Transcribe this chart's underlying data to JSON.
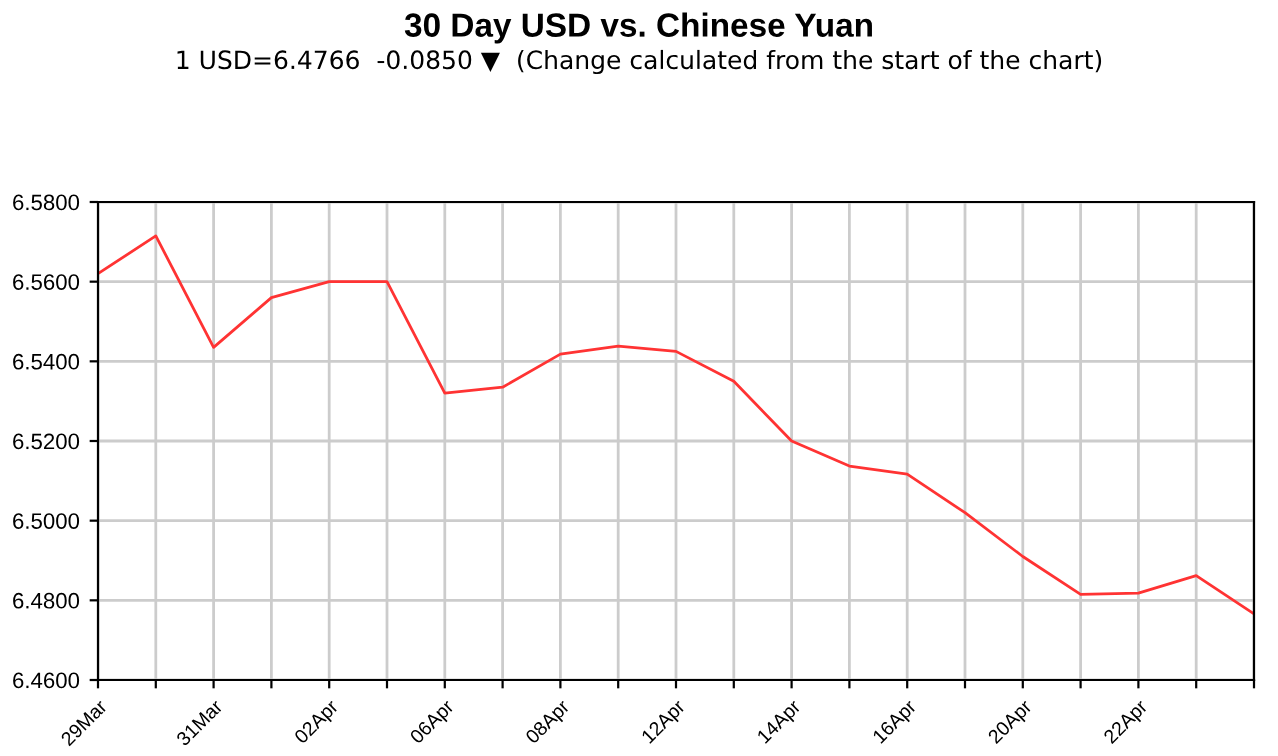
{
  "chart_data": {
    "type": "line",
    "title": "30 Day USD vs. Chinese Yuan",
    "subtitle": "1 USD=6.4766  -0.0850 ▼  (Change calculated from the start of the chart)",
    "categories": [
      "29Mar",
      null,
      "31Mar",
      null,
      "02Apr",
      null,
      "06Apr",
      null,
      "08Apr",
      null,
      "12Apr",
      null,
      "14Apr",
      null,
      "16Apr",
      null,
      "20Apr",
      null,
      "22Apr",
      null,
      null
    ],
    "series": [
      {
        "color": "#ff3333",
        "values": [
          6.562,
          6.5715,
          6.5435,
          6.556,
          6.56,
          6.56,
          6.532,
          6.5335,
          6.5418,
          6.5438,
          6.5425,
          6.535,
          6.52,
          6.5137,
          6.5117,
          6.502,
          6.491,
          6.4815,
          6.4818,
          6.4862,
          6.4766
        ]
      }
    ],
    "ylim": [
      6.46,
      6.58
    ],
    "yticks": [
      {
        "value": 6.46,
        "label": "6.4600"
      },
      {
        "value": 6.48,
        "label": "6.4800"
      },
      {
        "value": 6.5,
        "label": "6.5000"
      },
      {
        "value": 6.52,
        "label": "6.5200"
      },
      {
        "value": 6.54,
        "label": "6.5400"
      },
      {
        "value": 6.56,
        "label": "6.5600"
      },
      {
        "value": 6.58,
        "label": "6.5800"
      }
    ],
    "grid": true,
    "marker": "none",
    "line_style": "solid"
  }
}
